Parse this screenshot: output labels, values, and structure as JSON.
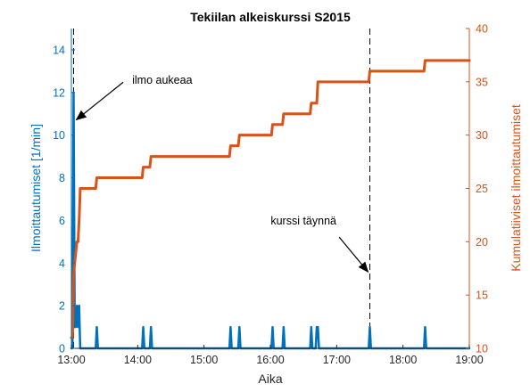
{
  "chart_data": {
    "type": "line",
    "title": "Tekiilan alkeiskurssi S2015",
    "xlabel": "Aika",
    "ylabel_left": "Ilmoittautumiset [1/min]",
    "ylabel_right": "Kumulatiiviset ilmoittautumiset",
    "x_ticks": [
      "13:00",
      "14:00",
      "15:00",
      "16:00",
      "17:00",
      "18:00",
      "19:00"
    ],
    "xlim": [
      "13:00",
      "19:00"
    ],
    "ylim_left": [
      0,
      15
    ],
    "ylim_right": [
      10,
      40
    ],
    "yticks_left": [
      0,
      2,
      4,
      6,
      8,
      10,
      12,
      14
    ],
    "yticks_right": [
      10,
      15,
      20,
      25,
      30,
      35,
      40
    ],
    "grid": false,
    "colors": {
      "left": "#0072BD",
      "right": "#D95319",
      "markers": "#000000"
    },
    "series": [
      {
        "axis": "left",
        "x": [
          "13:00",
          "13:01",
          "13:02",
          "13:03",
          "13:04",
          "13:05",
          "13:06",
          "13:07",
          "13:08",
          "13:09",
          "13:10",
          "13:22",
          "13:23",
          "13:24",
          "14:04",
          "14:05",
          "14:06",
          "14:11",
          "14:12",
          "14:13",
          "15:23",
          "15:24",
          "15:25",
          "15:31",
          "15:32",
          "15:33",
          "16:01",
          "16:02",
          "16:03",
          "16:11",
          "16:12",
          "16:13",
          "16:36",
          "16:37",
          "16:38",
          "16:41",
          "16:42",
          "16:43",
          "16:44",
          "17:29",
          "17:30",
          "17:31",
          "18:19",
          "18:20",
          "18:21",
          "19:00"
        ],
        "values": [
          0,
          0,
          12,
          1,
          1,
          2,
          1,
          2,
          0,
          0,
          0,
          0,
          1,
          0,
          0,
          1,
          0,
          0,
          1,
          0,
          0,
          1,
          0,
          0,
          1,
          0,
          0,
          1,
          0,
          0,
          1,
          0,
          0,
          1,
          0,
          0,
          1,
          1,
          0,
          0,
          1,
          0,
          0,
          1,
          0,
          0
        ]
      },
      {
        "axis": "right",
        "x": [
          "13:00",
          "13:01",
          "13:02",
          "13:03",
          "13:04",
          "13:05",
          "13:06",
          "13:07",
          "13:08",
          "13:09",
          "13:10",
          "13:22",
          "13:23",
          "14:04",
          "14:05",
          "14:11",
          "14:12",
          "15:23",
          "15:24",
          "15:31",
          "15:32",
          "16:01",
          "16:02",
          "16:11",
          "16:12",
          "16:36",
          "16:37",
          "16:42",
          "16:43",
          "17:29",
          "17:30",
          "18:19",
          "18:20",
          "19:00"
        ],
        "values": [
          11,
          11,
          17,
          18,
          19,
          20,
          20,
          22,
          25,
          25,
          25,
          25,
          26,
          26,
          27,
          27,
          28,
          28,
          29,
          29,
          30,
          30,
          31,
          31,
          32,
          32,
          33,
          33,
          35,
          35,
          36,
          36,
          37,
          37
        ]
      }
    ],
    "markers": [
      {
        "x": "13:02",
        "label": ""
      },
      {
        "x": "17:30",
        "label": ""
      }
    ],
    "annotations": [
      {
        "text": "ilmo aukeaa",
        "points_to_x": "13:02",
        "points_to_y_left": 10.8,
        "text_x": "13:55",
        "text_y_left": 12.4
      },
      {
        "text": "kurssi täynnä",
        "points_to_x": "17:30",
        "points_to_y_left": 3.5,
        "text_x": "16:30",
        "text_y_left": 5.8
      }
    ]
  }
}
